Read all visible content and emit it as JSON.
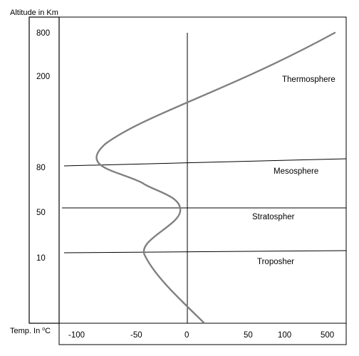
{
  "chart_data": {
    "type": "line",
    "ylabel": "Altitude in Km",
    "xlabel_prefix": "Temp. In ",
    "xlabel_sup": "o",
    "xlabel_suffix": "C",
    "y_ticks": [
      "800",
      "200",
      "80",
      "50",
      "10"
    ],
    "x_ticks": [
      "-100",
      "-50",
      "0",
      "50",
      "100",
      "500"
    ],
    "layers": [
      {
        "name": "Thermosphere"
      },
      {
        "name": "Mesosphere"
      },
      {
        "name": "Stratospher"
      },
      {
        "name": "Troposher"
      }
    ],
    "grid": false,
    "line_color": "#808080"
  }
}
